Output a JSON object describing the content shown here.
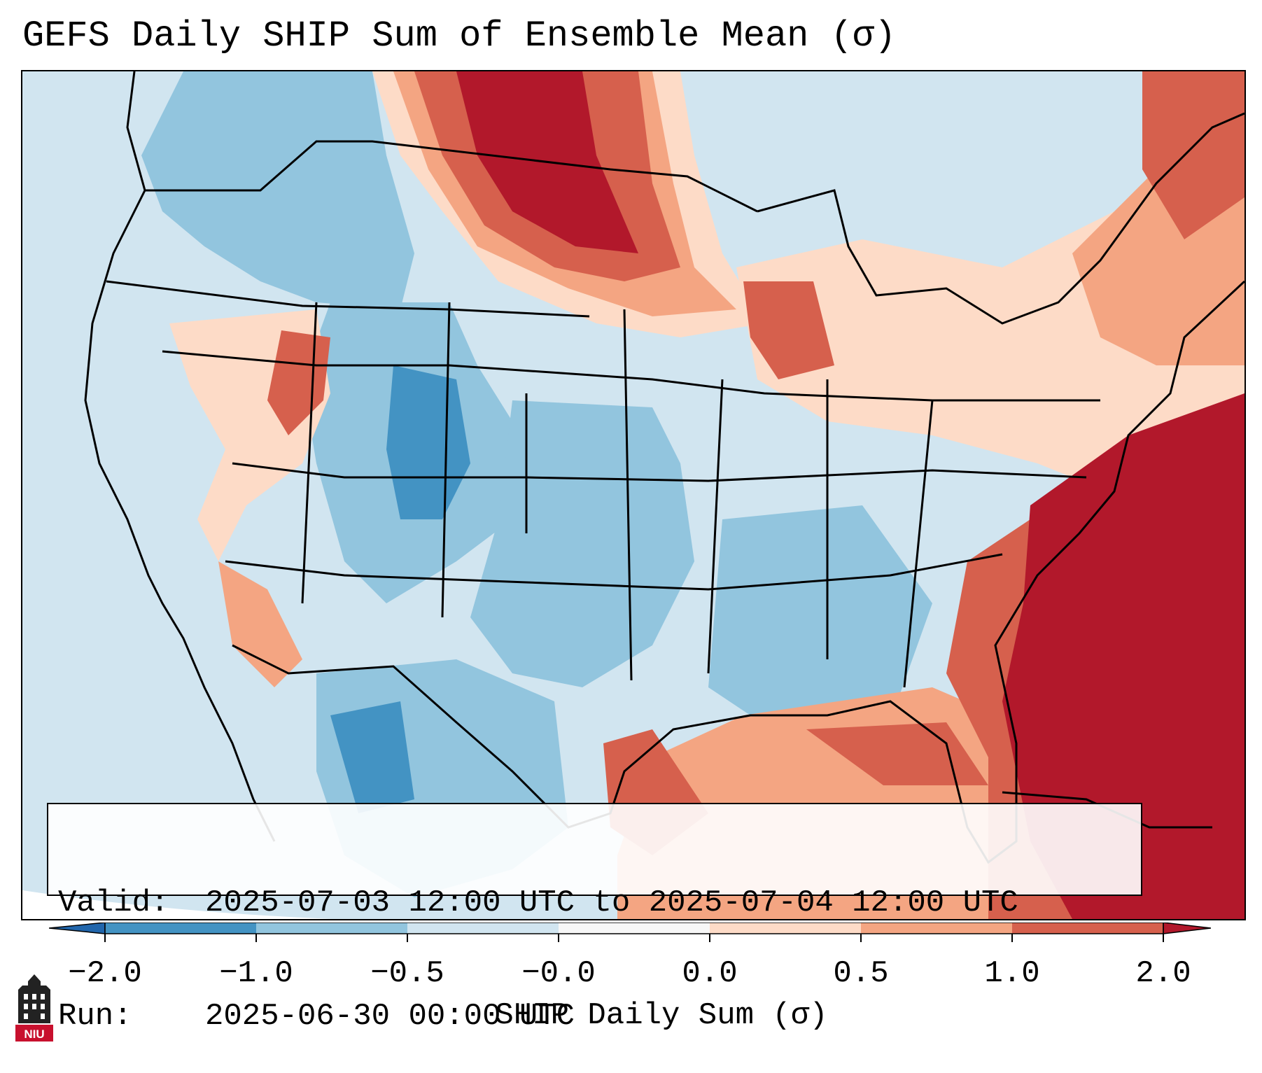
{
  "title": "GEFS Daily SHIP Sum of Ensemble Mean (σ)",
  "info": {
    "valid_label": "Valid:",
    "valid_value": "2025-07-03 12:00 UTC to 2025-07-04 12:00 UTC",
    "run_label": "Run:",
    "run_value": "2025-06-30 00:00 UTC"
  },
  "colorbar": {
    "label": "SHIP Daily Sum (σ)",
    "ticks": [
      "−2.0",
      "−1.0",
      "−0.5",
      "−0.0",
      "0.0",
      "0.5",
      "1.0",
      "2.0"
    ],
    "colors": [
      "#4393c3",
      "#92c5de",
      "#d1e5f0",
      "#f7f7f7",
      "#fddbc7",
      "#f4a582",
      "#d6604d",
      "#b2182b"
    ],
    "extend_low_color": "#2166ac",
    "extend_high_color": "#b2182b"
  },
  "map": {
    "region": "Contiguous United States",
    "background_color": "#d1e5f0"
  },
  "logo": {
    "text": "NIU"
  }
}
